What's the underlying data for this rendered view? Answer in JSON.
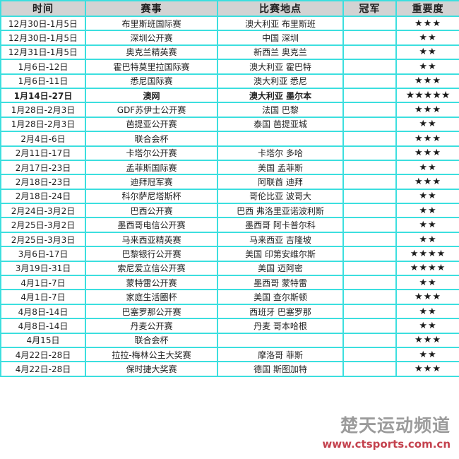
{
  "colors": {
    "border": "#3cdfdf",
    "header_bg": "#d3d3d3",
    "star": "#1c1c1c",
    "brand_gray": "#9b9b9b",
    "url_red": "#c4424e"
  },
  "table": {
    "headers": [
      "时间",
      "赛事",
      "比赛地点",
      "冠军",
      "重要度"
    ],
    "rows": [
      {
        "date": "12月30日-1月5日",
        "event": "布里斯班国际赛",
        "location": "澳大利亚 布里斯班",
        "champion": "",
        "stars": "★★★",
        "highlight": false
      },
      {
        "date": "12月30日-1月5日",
        "event": "深圳公开赛",
        "location": "中国 深圳",
        "champion": "",
        "stars": "★★",
        "highlight": false
      },
      {
        "date": "12月31日-1月5日",
        "event": "奥克兰精英赛",
        "location": "新西兰 奥克兰",
        "champion": "",
        "stars": "★★",
        "highlight": false
      },
      {
        "date": "1月6日-12日",
        "event": "霍巴特莫里拉国际赛",
        "location": "澳大利亚 霍巴特",
        "champion": "",
        "stars": "★★",
        "highlight": false
      },
      {
        "date": "1月6日-11日",
        "event": "悉尼国际赛",
        "location": "澳大利亚 悉尼",
        "champion": "",
        "stars": "★★★",
        "highlight": false
      },
      {
        "date": "1月14日-27日",
        "event": "澳网",
        "location": "澳大利亚 墨尔本",
        "champion": "",
        "stars": "★★★★★",
        "highlight": true
      },
      {
        "date": "1月28日-2月3日",
        "event": "GDF苏伊士公开赛",
        "location": "法国 巴黎",
        "champion": "",
        "stars": "★★★",
        "highlight": false
      },
      {
        "date": "1月28日-2月3日",
        "event": "芭提亚公开赛",
        "location": "泰国 芭提亚城",
        "champion": "",
        "stars": "★★",
        "highlight": false
      },
      {
        "date": "2月4日-6日",
        "event": "联合会杯",
        "location": "",
        "champion": "",
        "stars": "★★★",
        "highlight": false
      },
      {
        "date": "2月11日-17日",
        "event": "卡塔尔公开赛",
        "location": "卡塔尔 多哈",
        "champion": "",
        "stars": "★★★",
        "highlight": false
      },
      {
        "date": "2月17日-23日",
        "event": "孟菲斯国际赛",
        "location": "美国 孟菲斯",
        "champion": "",
        "stars": "★★",
        "highlight": false
      },
      {
        "date": "2月18日-23日",
        "event": "迪拜冠军赛",
        "location": "阿联酋 迪拜",
        "champion": "",
        "stars": "★★★",
        "highlight": false
      },
      {
        "date": "2月18日-24日",
        "event": "科尔萨尼塔斯杯",
        "location": "哥伦比亚 波哥大",
        "champion": "",
        "stars": "★★",
        "highlight": false
      },
      {
        "date": "2月24日-3月2日",
        "event": "巴西公开赛",
        "location": "巴西 弗洛里亚诺波利斯",
        "champion": "",
        "stars": "★★",
        "highlight": false
      },
      {
        "date": "2月25日-3月2日",
        "event": "墨西哥电信公开赛",
        "location": "墨西哥 阿卡普尔科",
        "champion": "",
        "stars": "★★",
        "highlight": false
      },
      {
        "date": "2月25日-3月3日",
        "event": "马来西亚精英赛",
        "location": "马来西亚 吉隆坡",
        "champion": "",
        "stars": "★★",
        "highlight": false
      },
      {
        "date": "3月6日-17日",
        "event": "巴黎银行公开赛",
        "location": "美国 印第安维尔斯",
        "champion": "",
        "stars": "★★★★",
        "highlight": false
      },
      {
        "date": "3月19日-31日",
        "event": "索尼爱立信公开赛",
        "location": "美国 迈阿密",
        "champion": "",
        "stars": "★★★★",
        "highlight": false
      },
      {
        "date": "4月1日-7日",
        "event": "蒙特雷公开赛",
        "location": "墨西哥 蒙特雷",
        "champion": "",
        "stars": "★★",
        "highlight": false
      },
      {
        "date": "4月1日-7日",
        "event": "家庭生活圈杯",
        "location": "美国 查尔斯顿",
        "champion": "",
        "stars": "★★★",
        "highlight": false
      },
      {
        "date": "4月8日-14日",
        "event": "巴塞罗那公开赛",
        "location": "西班牙 巴塞罗那",
        "champion": "",
        "stars": "★★",
        "highlight": false
      },
      {
        "date": "4月8日-14日",
        "event": "丹麦公开赛",
        "location": "丹麦 哥本哈根",
        "champion": "",
        "stars": "★★",
        "highlight": false
      },
      {
        "date": "4月15日",
        "event": "联合会杯",
        "location": "",
        "champion": "",
        "stars": "★★★",
        "highlight": false
      },
      {
        "date": "4月22日-28日",
        "event": "拉拉-梅林公主大奖赛",
        "location": "摩洛哥 菲斯",
        "champion": "",
        "stars": "★★",
        "highlight": false
      },
      {
        "date": "4月22日-28日",
        "event": "保时捷大奖赛",
        "location": "德国 斯图加特",
        "champion": "",
        "stars": "★★★",
        "highlight": false
      }
    ]
  },
  "footer": {
    "brand": "楚天运动频道",
    "url": "www.ctsports.com.cn"
  }
}
